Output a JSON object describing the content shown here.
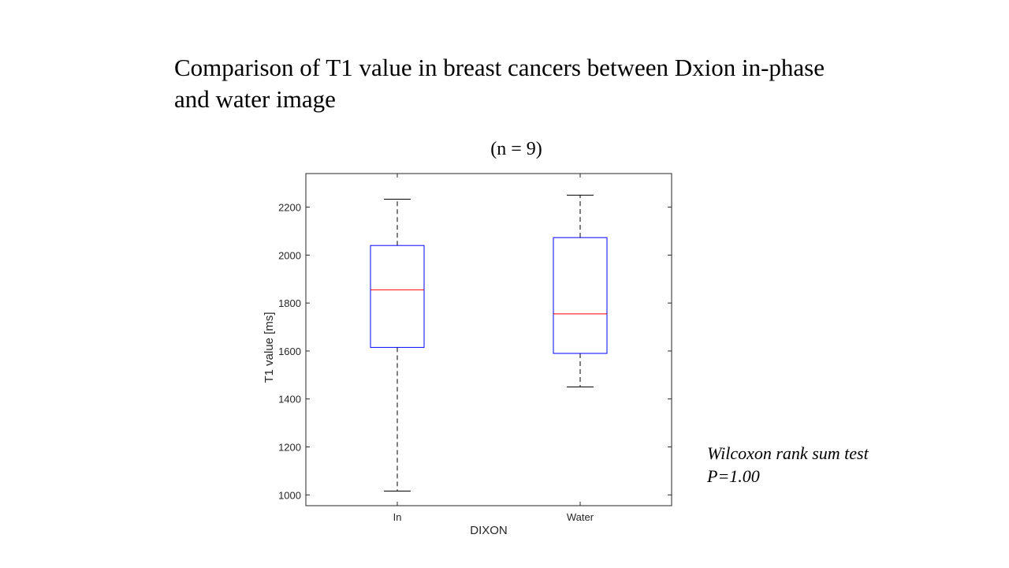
{
  "slide": {
    "title_line1": "Comparison of T1 value in breast cancers between Dxion in-phase",
    "title_line2": "and water image"
  },
  "chart_data": {
    "type": "box",
    "title": "(n = 9)",
    "xlabel": "DIXON",
    "ylabel": "T1 value [ms]",
    "categories": [
      "In",
      "Water"
    ],
    "boxes": [
      {
        "category": "In",
        "min": 1016,
        "q1": 1615,
        "median": 1855,
        "q3": 2040,
        "max": 2233
      },
      {
        "category": "Water",
        "min": 1450,
        "q1": 1590,
        "median": 1755,
        "q3": 2073,
        "max": 2250
      }
    ],
    "yticks": [
      1000,
      1200,
      1400,
      1600,
      1800,
      2000,
      2200
    ],
    "ylim": [
      955,
      2340
    ],
    "grid": false,
    "colors": {
      "box": "#0000ff",
      "median": "#ff0000",
      "whisker": "#000000",
      "axes": "#262626"
    }
  },
  "annotation": {
    "line1": "Wilcoxon rank sum test",
    "line2": "P=1.00"
  }
}
